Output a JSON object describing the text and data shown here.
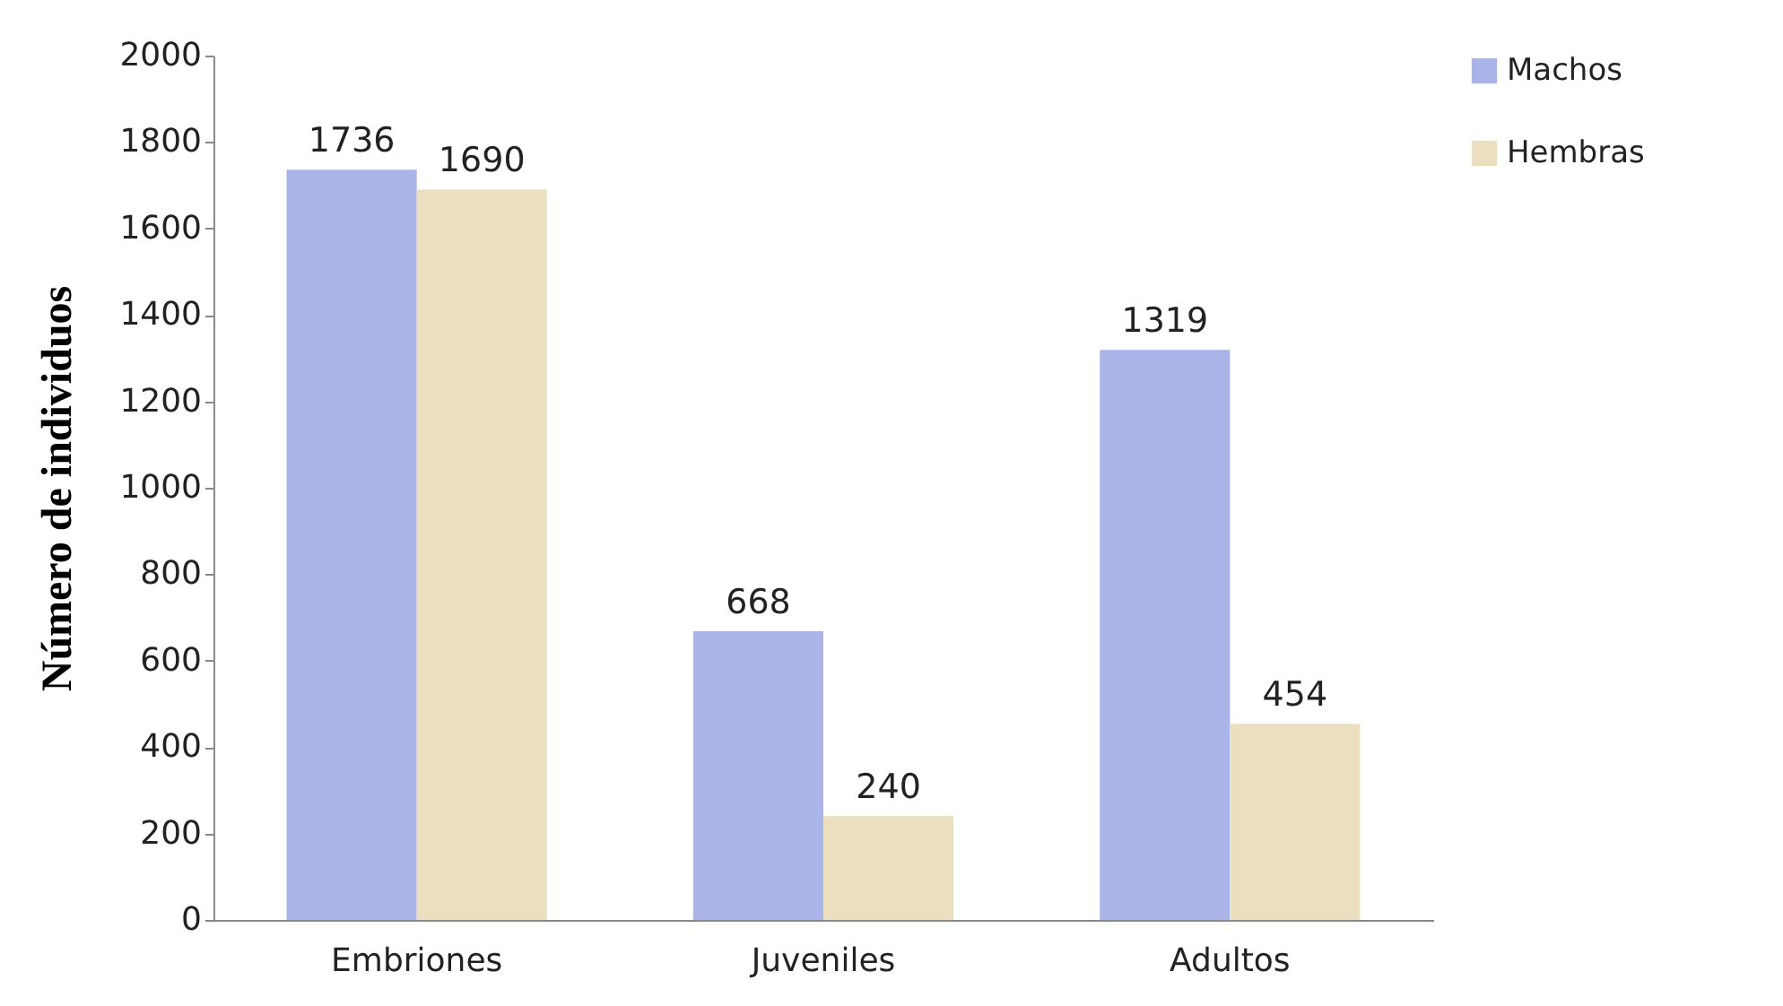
{
  "chart_data": {
    "type": "bar",
    "ylabel": "Número de individuos",
    "categories": [
      "Embriones",
      "Juveniles",
      "Adultos"
    ],
    "series": [
      {
        "name": "Machos",
        "color": "#aab4e8",
        "values": [
          1736,
          668,
          1319
        ]
      },
      {
        "name": "Hembras",
        "color": "#eadfbf",
        "values": [
          1690,
          240,
          454
        ]
      }
    ],
    "ylim": [
      0,
      2000
    ],
    "yticks": [
      0,
      200,
      400,
      600,
      800,
      1000,
      1200,
      1400,
      1600,
      1800,
      2000
    ],
    "data_labels": true,
    "legend": "right",
    "grid": false
  }
}
